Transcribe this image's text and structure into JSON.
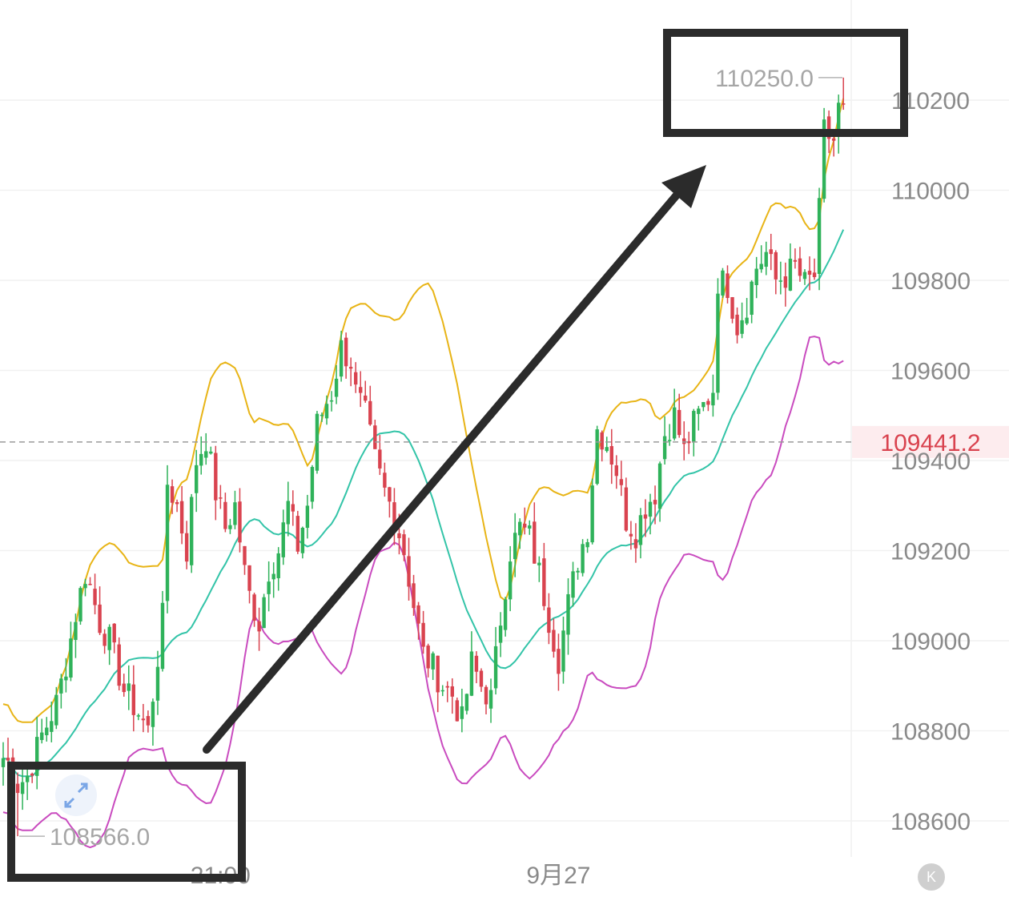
{
  "chart_data": {
    "type": "candlestick",
    "y_axis": {
      "ticks": [
        108600,
        108800,
        109000,
        109200,
        109400,
        109600,
        109800,
        110000,
        110200
      ],
      "ylim": [
        108520,
        110330
      ],
      "position": "right"
    },
    "x_axis": {
      "ticks": [
        {
          "label": "21:00",
          "index": 45
        },
        {
          "label": "9月27",
          "index": 115
        }
      ]
    },
    "current_price": {
      "label": "109441.2",
      "value": 109441.2,
      "color": "#d9434f"
    },
    "high_marker": {
      "label": "110250.0",
      "value": 110250.0
    },
    "low_marker": {
      "label": "108566.0",
      "value": 108566.0
    },
    "colors": {
      "up": "#2fb25a",
      "down": "#d9434f",
      "upper_band": "#e8b416",
      "middle_band": "#33c4a8",
      "lower_band": "#c94bbf",
      "annotation": "#2b2b2b"
    },
    "indicators": [
      {
        "name": "upper",
        "color": "#e8b416"
      },
      {
        "name": "middle",
        "color": "#33c4a8"
      },
      {
        "name": "lower",
        "color": "#c94bbf"
      }
    ],
    "anchors": [
      [
        0,
        108740
      ],
      [
        1,
        108730
      ],
      [
        2,
        108700
      ],
      [
        3,
        108680
      ],
      [
        5,
        108700
      ],
      [
        8,
        108790
      ],
      [
        11,
        108860
      ],
      [
        13,
        108950
      ],
      [
        15,
        109060
      ],
      [
        17,
        109150
      ],
      [
        18,
        109120
      ],
      [
        20,
        109040
      ],
      [
        22,
        109000
      ],
      [
        25,
        108890
      ],
      [
        28,
        108840
      ],
      [
        30,
        108800
      ],
      [
        31,
        108880
      ],
      [
        33,
        109050
      ],
      [
        34,
        109350
      ],
      [
        36,
        109300
      ],
      [
        38,
        109200
      ],
      [
        40,
        109400
      ],
      [
        42,
        109450
      ],
      [
        44,
        109330
      ],
      [
        46,
        109250
      ],
      [
        48,
        109300
      ],
      [
        50,
        109150
      ],
      [
        51,
        109100
      ],
      [
        53,
        109040
      ],
      [
        55,
        109160
      ],
      [
        57,
        109200
      ],
      [
        59,
        109300
      ],
      [
        61,
        109210
      ],
      [
        63,
        109300
      ],
      [
        65,
        109480
      ],
      [
        67,
        109530
      ],
      [
        68,
        109550
      ],
      [
        70,
        109650
      ],
      [
        72,
        109620
      ],
      [
        73,
        109550
      ],
      [
        75,
        109500
      ],
      [
        77,
        109400
      ],
      [
        79,
        109330
      ],
      [
        81,
        109280
      ],
      [
        83,
        109200
      ],
      [
        85,
        109080
      ],
      [
        87,
        108970
      ],
      [
        89,
        108940
      ],
      [
        91,
        108900
      ],
      [
        93,
        108880
      ],
      [
        95,
        108820
      ],
      [
        97,
        108950
      ],
      [
        99,
        108900
      ],
      [
        101,
        108870
      ],
      [
        103,
        109050
      ],
      [
        105,
        109200
      ],
      [
        107,
        109250
      ],
      [
        109,
        109230
      ],
      [
        111,
        109150
      ],
      [
        113,
        109050
      ],
      [
        115,
        108960
      ],
      [
        117,
        109080
      ],
      [
        119,
        109180
      ],
      [
        121,
        109250
      ],
      [
        123,
        109470
      ],
      [
        125,
        109440
      ],
      [
        127,
        109380
      ],
      [
        129,
        109270
      ],
      [
        131,
        109240
      ],
      [
        133,
        109300
      ],
      [
        135,
        109330
      ],
      [
        137,
        109460
      ],
      [
        139,
        109500
      ],
      [
        141,
        109420
      ],
      [
        143,
        109480
      ],
      [
        145,
        109520
      ],
      [
        147,
        109560
      ],
      [
        148,
        109800
      ],
      [
        150,
        109790
      ],
      [
        152,
        109700
      ],
      [
        154,
        109750
      ],
      [
        156,
        109830
      ],
      [
        158,
        109860
      ],
      [
        160,
        109800
      ],
      [
        162,
        109810
      ],
      [
        164,
        109830
      ],
      [
        166,
        109790
      ],
      [
        168,
        109810
      ],
      [
        169,
        109950
      ],
      [
        170,
        110130
      ],
      [
        172,
        110110
      ],
      [
        173,
        110180
      ],
      [
        174,
        110190
      ]
    ],
    "n_candles": 175,
    "x_start": 4,
    "x_step": 6.03,
    "series_note_ignored": true
  },
  "ui": {
    "k_button_label": "K"
  }
}
